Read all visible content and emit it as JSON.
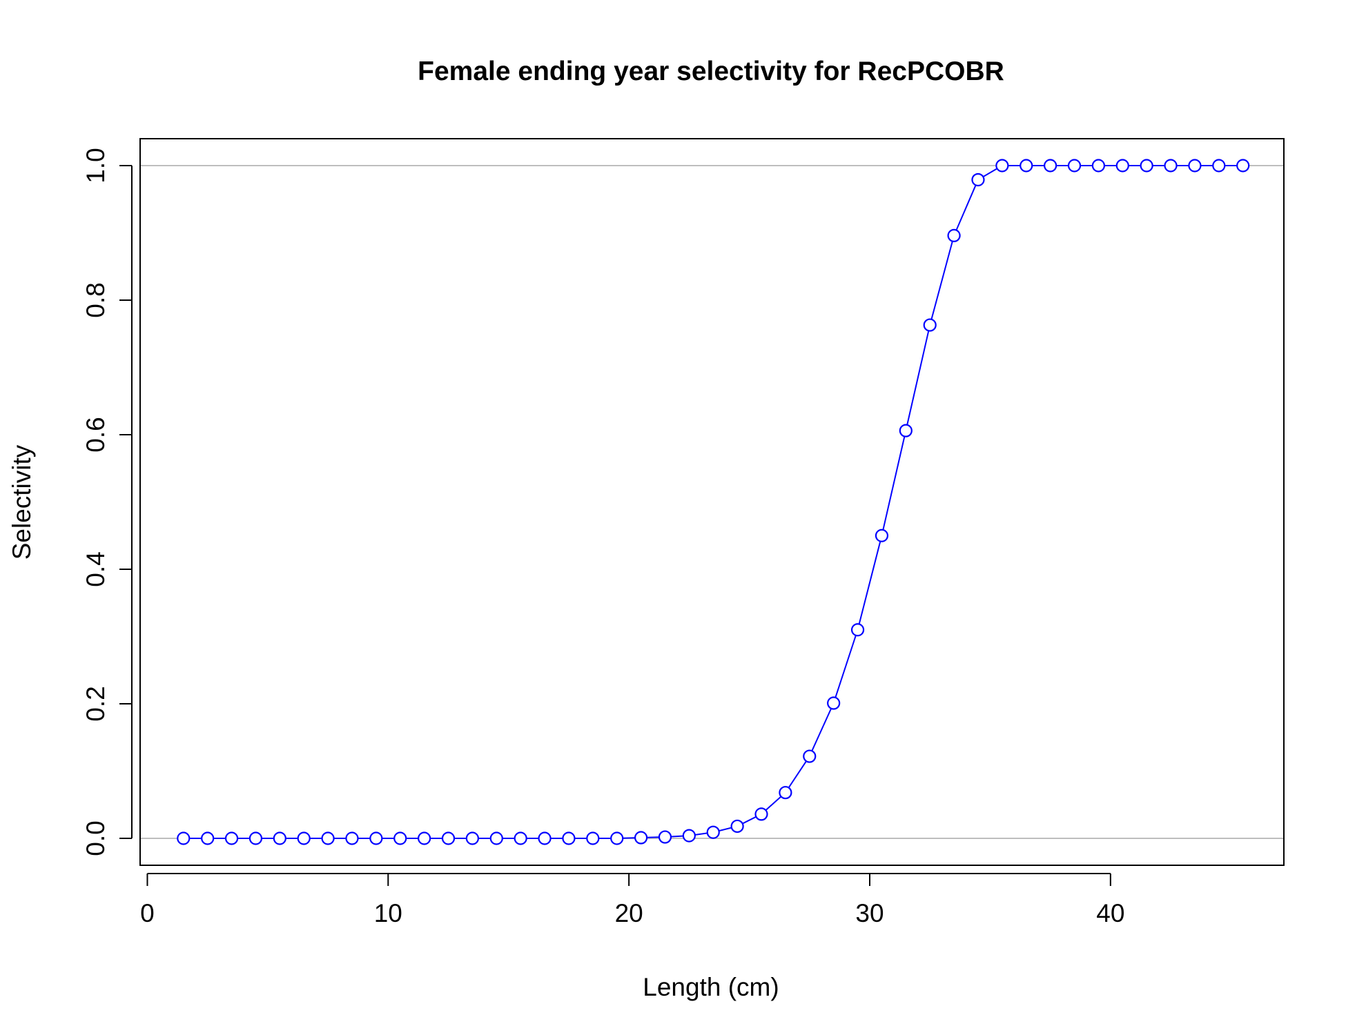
{
  "chart_data": {
    "type": "line",
    "title": "Female ending year selectivity for RecPCOBR",
    "xlabel": "Length (cm)",
    "ylabel": "Selectivity",
    "xlim": [
      -0.3,
      47.2
    ],
    "ylim": [
      -0.04,
      1.04
    ],
    "x_ticks": [
      0,
      10,
      20,
      30,
      40
    ],
    "x_tick_labels": [
      "0",
      "10",
      "20",
      "30",
      "40"
    ],
    "y_ticks": [
      0,
      0.2,
      0.4,
      0.6,
      0.8,
      1.0
    ],
    "y_tick_labels": [
      "0.0",
      "0.2",
      "0.4",
      "0.6",
      "0.8",
      "1.0"
    ],
    "reference_lines": [
      0,
      1
    ],
    "grid": false,
    "legend": "none",
    "series": [
      {
        "color": "#0000ff",
        "marker": "open-circle",
        "x": [
          1.5,
          2.5,
          3.5,
          4.5,
          5.5,
          6.5,
          7.5,
          8.5,
          9.5,
          10.5,
          11.5,
          12.5,
          13.5,
          14.5,
          15.5,
          16.5,
          17.5,
          18.5,
          19.5,
          20.5,
          21.5,
          22.5,
          23.5,
          24.5,
          25.5,
          26.5,
          27.5,
          28.5,
          29.5,
          30.5,
          31.5,
          32.5,
          33.5,
          34.5,
          35.5,
          36.5,
          37.5,
          38.5,
          39.5,
          40.5,
          41.5,
          42.5,
          43.5,
          44.5,
          45.5
        ],
        "values": [
          0,
          0,
          0,
          0,
          0,
          0,
          0,
          0,
          0,
          0,
          0,
          0,
          0,
          0,
          0,
          0,
          0,
          0,
          0,
          0.001,
          0.002,
          0.004,
          0.009,
          0.018,
          0.036,
          0.068,
          0.122,
          0.201,
          0.31,
          0.45,
          0.606,
          0.763,
          0.896,
          0.979,
          1.0,
          1.0,
          1.0,
          1.0,
          1.0,
          1.0,
          1.0,
          1.0,
          1.0,
          1.0,
          1.0
        ]
      }
    ],
    "colors": {
      "series": "#0000ff",
      "reference_line": "#bebebe",
      "axes": "#000000"
    }
  }
}
